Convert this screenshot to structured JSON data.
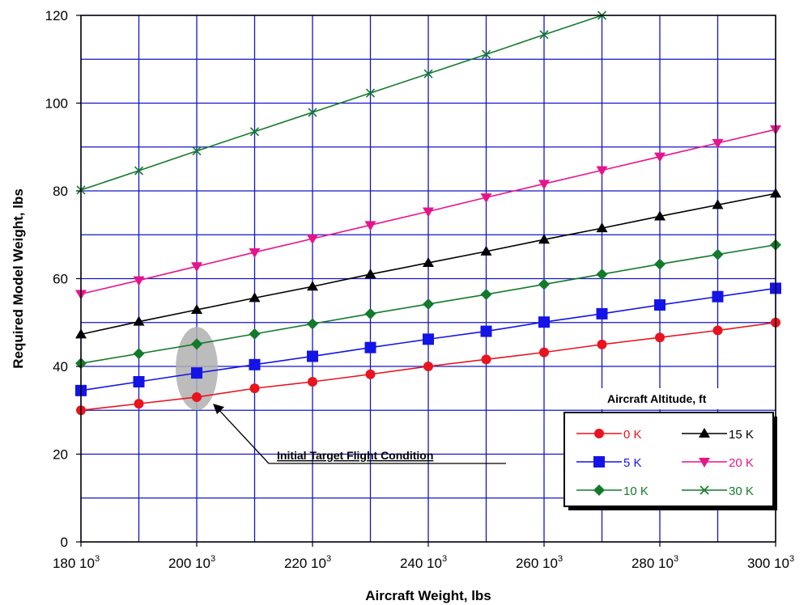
{
  "chart_data": {
    "type": "line",
    "title": "",
    "xlabel": "Aircraft Weight, lbs",
    "ylabel": "Required Model Weight, lbs",
    "xlim": [
      180000,
      300000
    ],
    "ylim": [
      0,
      120
    ],
    "grid": true,
    "x_ticks": [
      {
        "value": 180000,
        "label": "180 10",
        "exp": "3"
      },
      {
        "value": 200000,
        "label": "200 10",
        "exp": "3"
      },
      {
        "value": 220000,
        "label": "220 10",
        "exp": "3"
      },
      {
        "value": 240000,
        "label": "240 10",
        "exp": "3"
      },
      {
        "value": 260000,
        "label": "260 10",
        "exp": "3"
      },
      {
        "value": 280000,
        "label": "280 10",
        "exp": "3"
      },
      {
        "value": 300000,
        "label": "300 10",
        "exp": "3"
      }
    ],
    "y_ticks": [
      0,
      20,
      40,
      60,
      80,
      100,
      120
    ],
    "x": [
      180000,
      190000,
      200000,
      210000,
      220000,
      230000,
      240000,
      250000,
      260000,
      270000,
      280000,
      290000,
      300000
    ],
    "legend_title": "Aircraft Altitude, ft",
    "legend_position": "right",
    "series": [
      {
        "name": "0 K",
        "color": "#e8141e",
        "marker": "circle",
        "values": [
          30,
          31.5,
          33,
          35,
          36.5,
          38.2,
          40,
          41.6,
          43.2,
          45,
          46.6,
          48.2,
          50
        ]
      },
      {
        "name": "5 K",
        "color": "#1414e6",
        "marker": "square",
        "values": [
          34.5,
          36.5,
          38.5,
          40.4,
          42.3,
          44.3,
          46.2,
          48,
          50.1,
          52,
          54,
          55.9,
          57.8
        ]
      },
      {
        "name": "10 K",
        "color": "#137a2b",
        "marker": "diamond",
        "values": [
          40.7,
          42.9,
          45.1,
          47.4,
          49.7,
          52,
          54.2,
          56.4,
          58.7,
          61,
          63.3,
          65.5,
          67.7
        ]
      },
      {
        "name": "15 K",
        "color": "#000000",
        "marker": "triangle-up",
        "values": [
          47.3,
          50.2,
          52.9,
          55.6,
          58.2,
          61,
          63.6,
          66.2,
          68.9,
          71.5,
          74.2,
          76.8,
          79.4
        ]
      },
      {
        "name": "20 K",
        "color": "#e6148c",
        "marker": "triangle-down",
        "values": [
          56.5,
          59.6,
          62.8,
          66,
          69.1,
          72.2,
          75.3,
          78.5,
          81.6,
          84.7,
          87.8,
          90.9,
          94
        ]
      },
      {
        "name": "30 K",
        "color": "#137a2b",
        "marker": "x",
        "values": [
          80.2,
          84.6,
          89.1,
          93.5,
          97.9,
          102.3,
          106.7,
          111.1,
          115.6,
          120,
          null,
          null,
          null
        ]
      }
    ],
    "annotation": {
      "text": "Initial Target Flight Condition",
      "x": 200000,
      "y_range": [
        30,
        49
      ]
    }
  },
  "colors": {
    "grid": "#1414c8",
    "ellipse": "#b0b0b0"
  }
}
